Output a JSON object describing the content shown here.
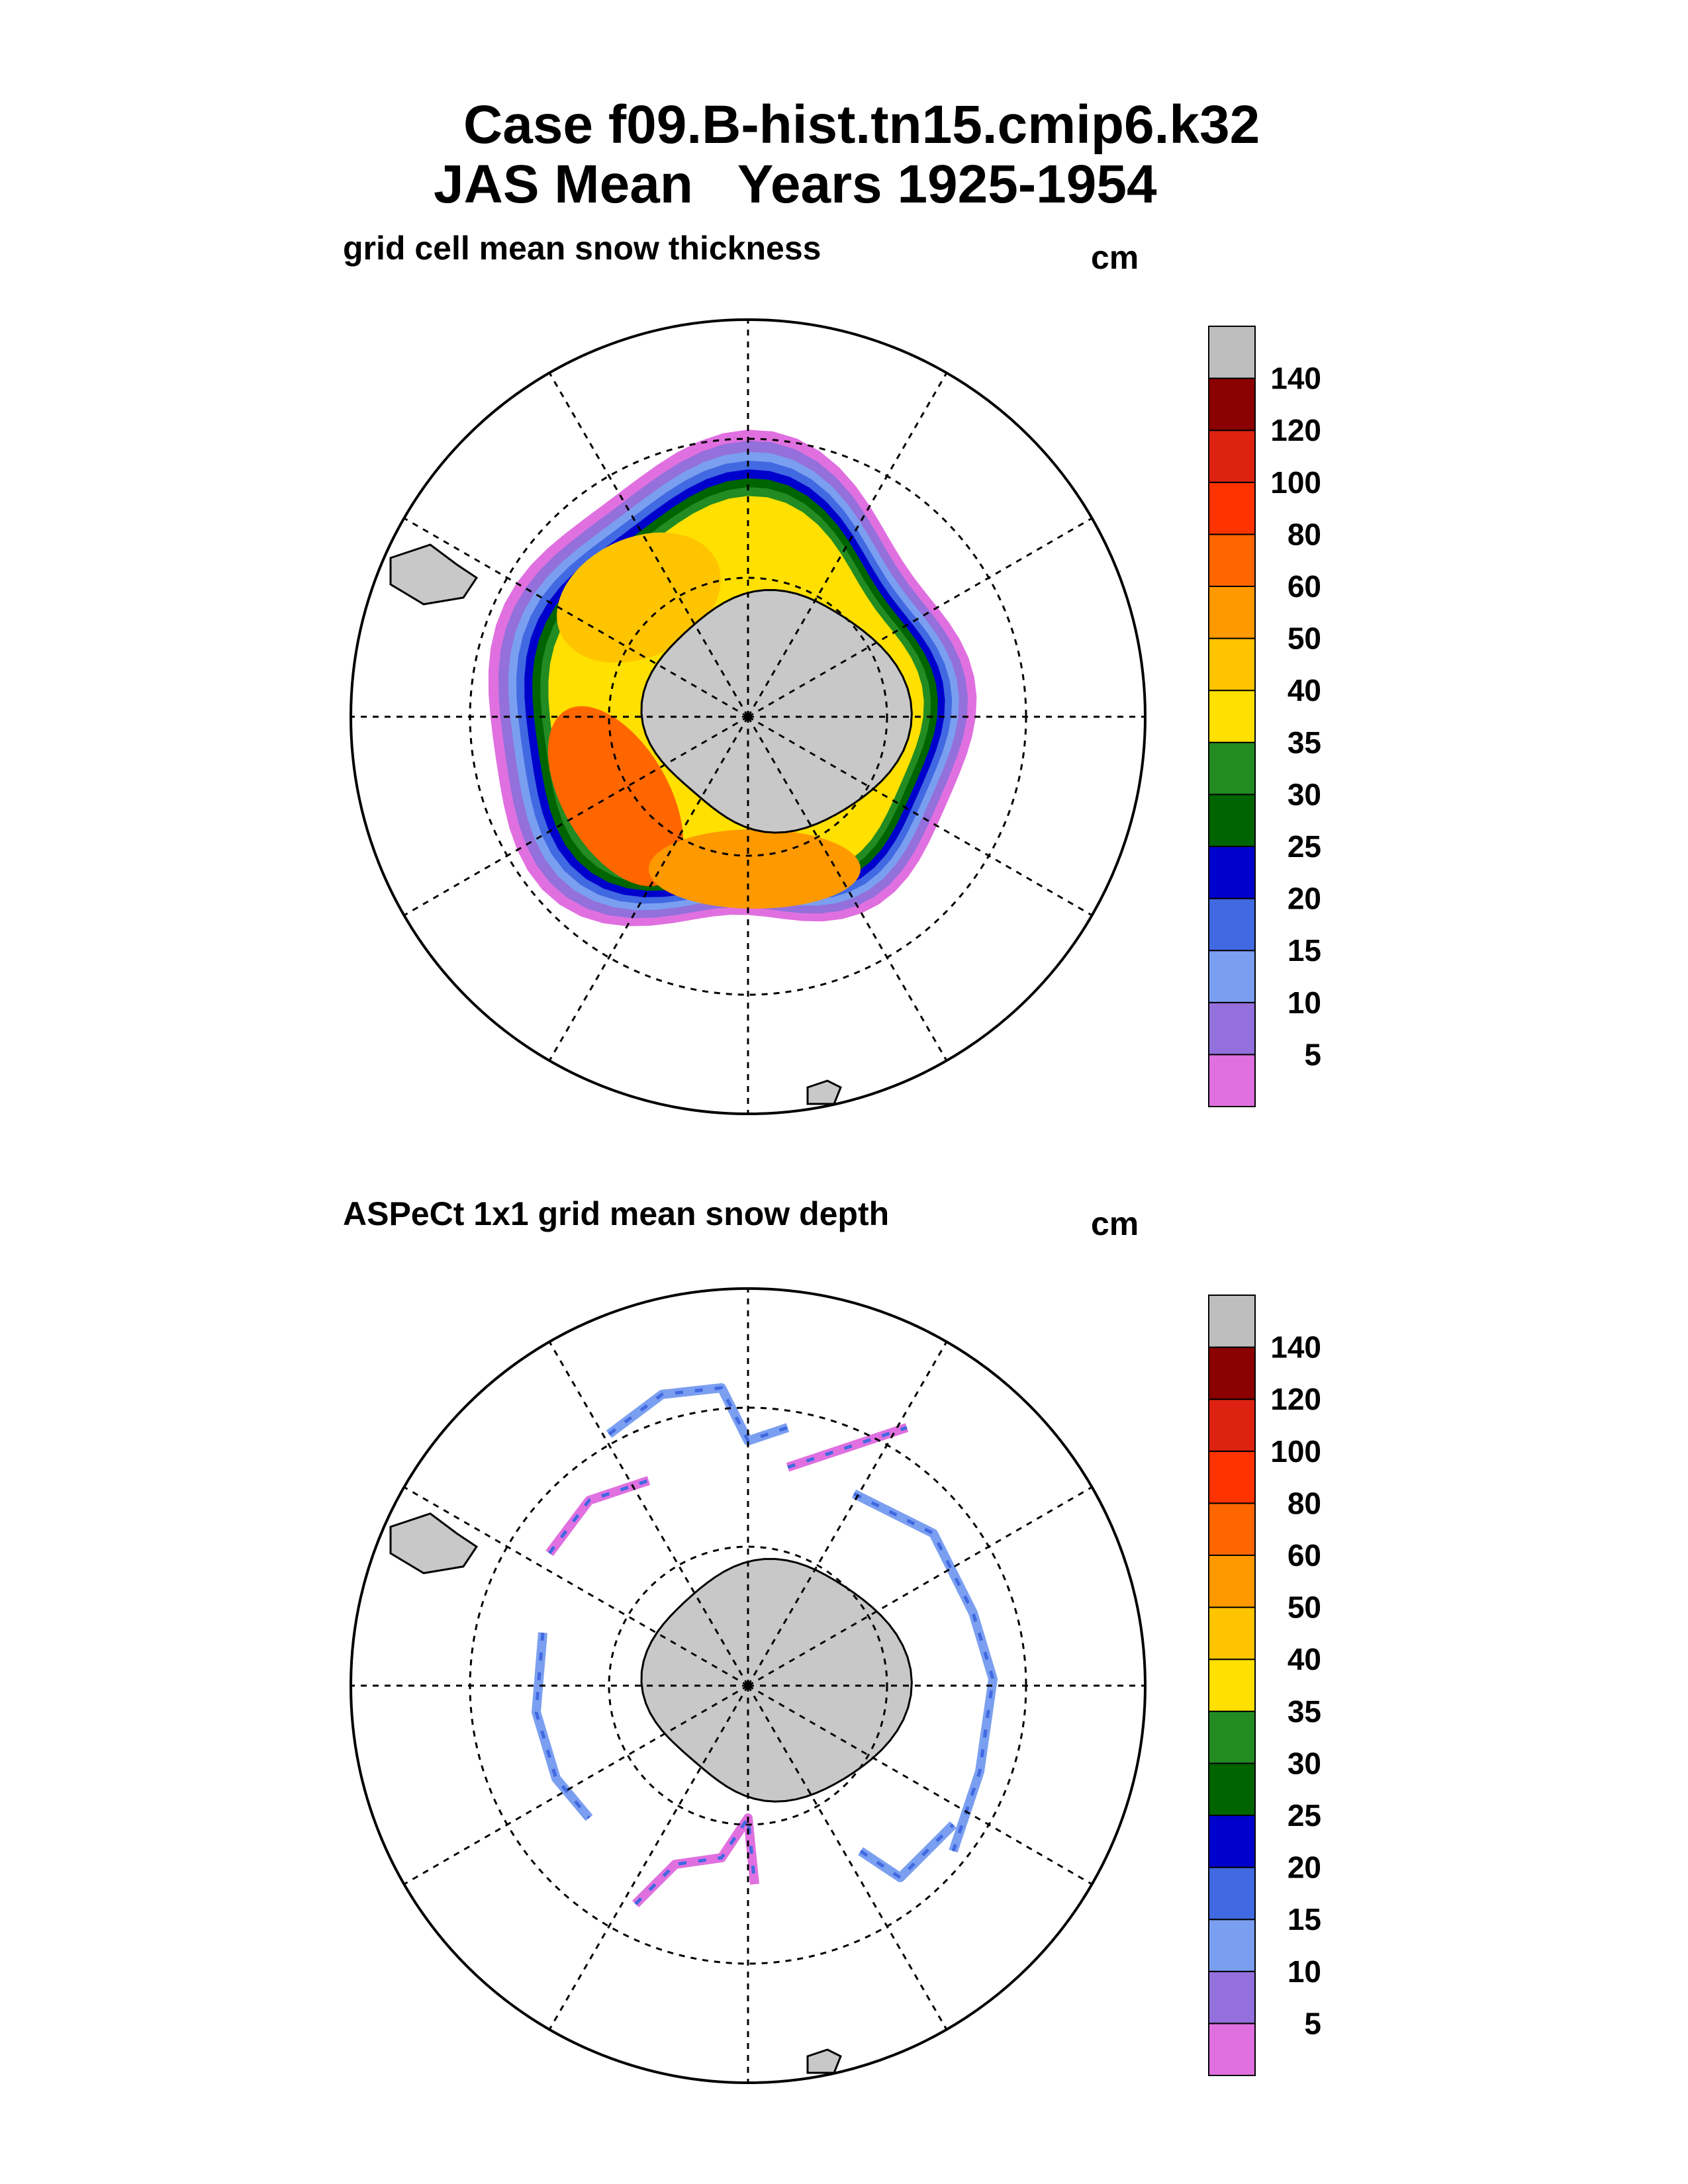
{
  "header": {
    "title_line1": "Case f09.B-hist.tn15.cmip6.k32",
    "title_line2": "JAS Mean   Years 1925-1954"
  },
  "chart_data": [
    {
      "type": "heatmap",
      "projection": "south-polar-stereographic",
      "title": "grid cell mean snow thickness",
      "units": "cm",
      "colorbar": {
        "levels": [
          5,
          10,
          15,
          20,
          25,
          30,
          35,
          40,
          50,
          60,
          80,
          100,
          120,
          140
        ],
        "labels": [
          "5",
          "10",
          "15",
          "20",
          "25",
          "30",
          "35",
          "40",
          "50",
          "60",
          "80",
          "100",
          "120",
          "140"
        ],
        "colors": [
          "#e070e0",
          "#9370db",
          "#7b9ff0",
          "#4169e1",
          "#0000cd",
          "#006400",
          "#228b22",
          "#ffe000",
          "#ffc400",
          "#ff9900",
          "#ff6600",
          "#ff3300",
          "#dd2211",
          "#8b0000",
          "#bebebe"
        ]
      },
      "description_ranges": {
        "weddell_sea": "35-50",
        "bellingshausen_amundsen": "50-100",
        "ross_sea": "40-60",
        "east_antarctic_pack": "20-35",
        "ice_edge": "5-15"
      }
    },
    {
      "type": "heatmap",
      "projection": "south-polar-stereographic",
      "title": "ASPeCt 1x1 grid mean snow depth",
      "units": "cm",
      "colorbar": {
        "levels": [
          5,
          10,
          15,
          20,
          25,
          30,
          35,
          40,
          50,
          60,
          80,
          100,
          120,
          140
        ],
        "labels": [
          "5",
          "10",
          "15",
          "20",
          "25",
          "30",
          "35",
          "40",
          "50",
          "60",
          "80",
          "100",
          "120",
          "140"
        ],
        "colors": [
          "#e070e0",
          "#9370db",
          "#7b9ff0",
          "#4169e1",
          "#0000cd",
          "#006400",
          "#228b22",
          "#ffe000",
          "#ffc400",
          "#ff9900",
          "#ff6600",
          "#ff3300",
          "#dd2211",
          "#8b0000",
          "#bebebe"
        ]
      },
      "description": "sparse ship-track observations, mostly 5-25 cm"
    }
  ],
  "colors": {
    "land": "#c8c8c8",
    "coast": "#000000"
  }
}
